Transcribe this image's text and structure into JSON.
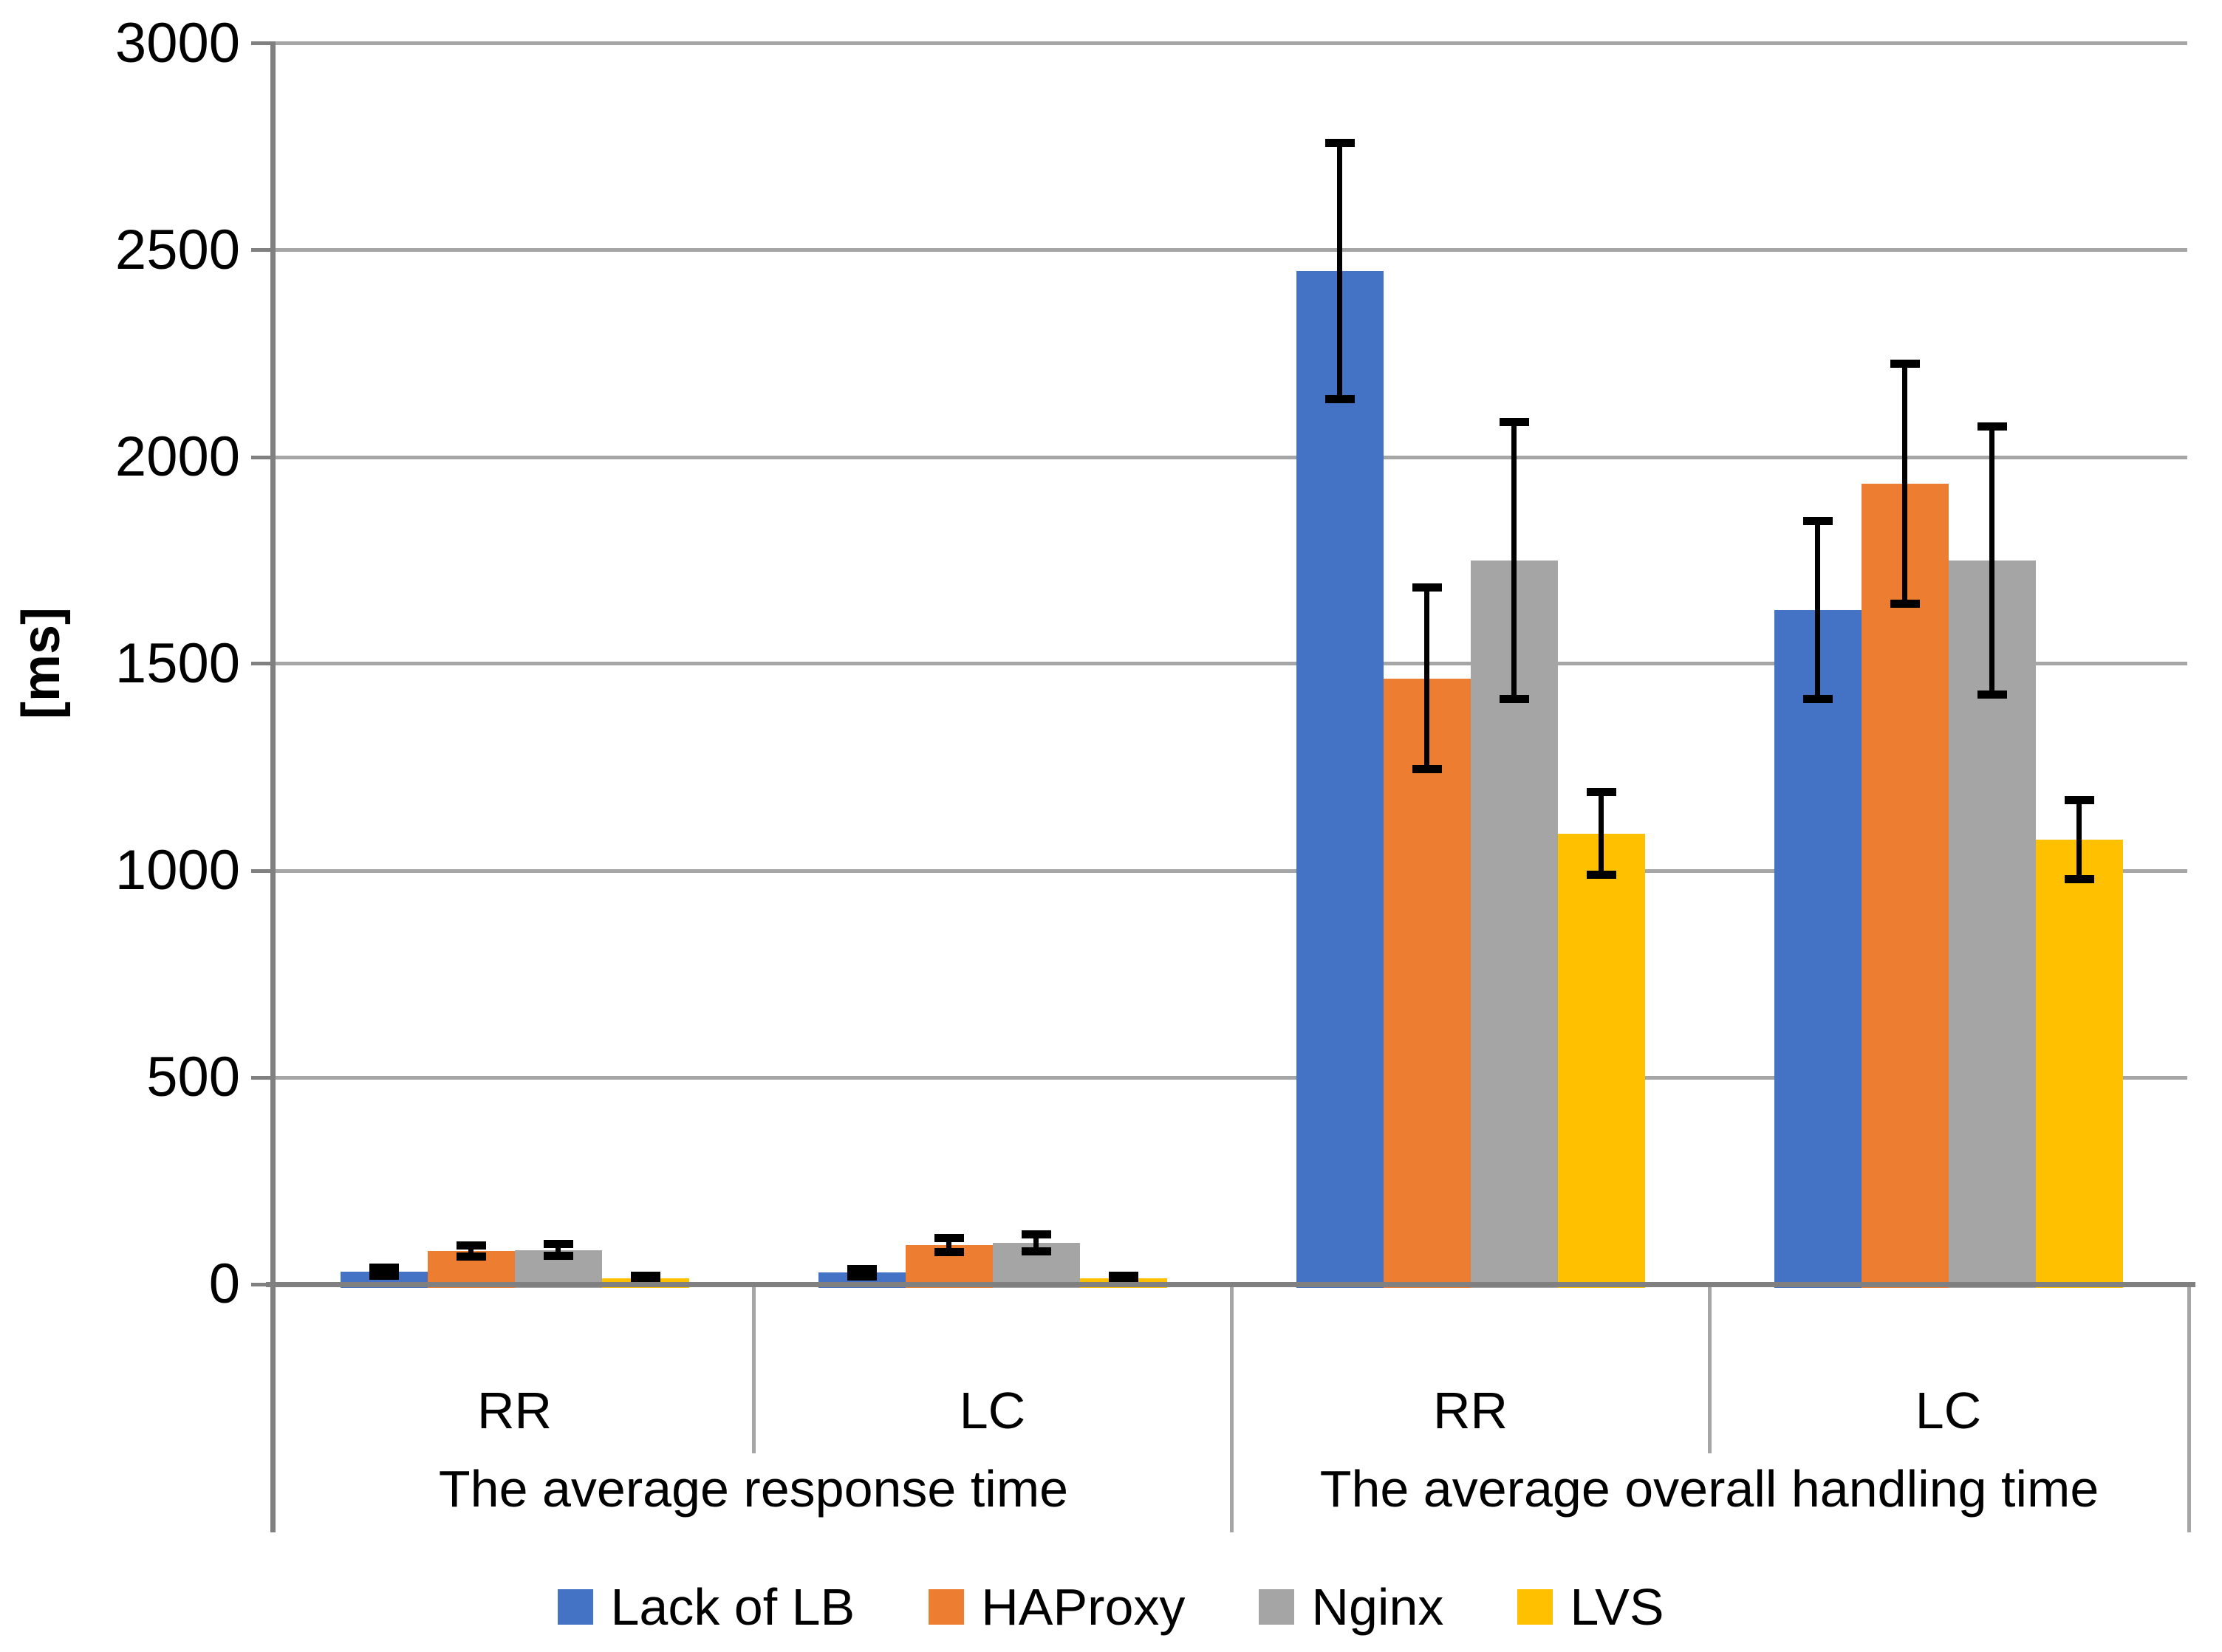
{
  "chart_data": {
    "type": "bar",
    "title": "",
    "ylabel": "[ms]",
    "xlabel": "",
    "ylim": [
      0,
      3000
    ],
    "ytick_step": 500,
    "yticks": [
      0,
      500,
      1000,
      1500,
      2000,
      2500,
      3000
    ],
    "grid": "horizontal-only",
    "legend_position": "bottom",
    "error_bars": true,
    "groups": [
      {
        "label": "The average response time",
        "categories": [
          "RR",
          "LC"
        ]
      },
      {
        "label": "The average overall handling time",
        "categories": [
          "RR",
          "LC"
        ]
      }
    ],
    "category_order_note": "series values are flat across the 4 category slots: response-RR, response-LC, overall-RR, overall-LC",
    "series": [
      {
        "name": "Lack of LB",
        "color": "#4472C4",
        "values": [
          30,
          28,
          2450,
          1630
        ],
        "errors": [
          10,
          9,
          310,
          215
        ]
      },
      {
        "name": "HAProxy",
        "color": "#ED7D31",
        "values": [
          80,
          95,
          1465,
          1935
        ],
        "errors": [
          13,
          17,
          220,
          290
        ]
      },
      {
        "name": "Nginx",
        "color": "#A5A5A5",
        "values": [
          83,
          100,
          1750,
          1750
        ],
        "errors": [
          15,
          20,
          335,
          325
        ]
      },
      {
        "name": "LVS",
        "color": "#FFC000",
        "values": [
          15,
          14,
          1090,
          1075
        ],
        "errors": [
          6,
          6,
          100,
          95
        ]
      }
    ]
  },
  "style": {
    "background": "#FFFFFF",
    "gridline_color": "#A6A6A6",
    "axis_color": "#808080",
    "separator_color": "#A6A6A6",
    "error_bar_color": "#000000",
    "text_color": "#000000"
  }
}
